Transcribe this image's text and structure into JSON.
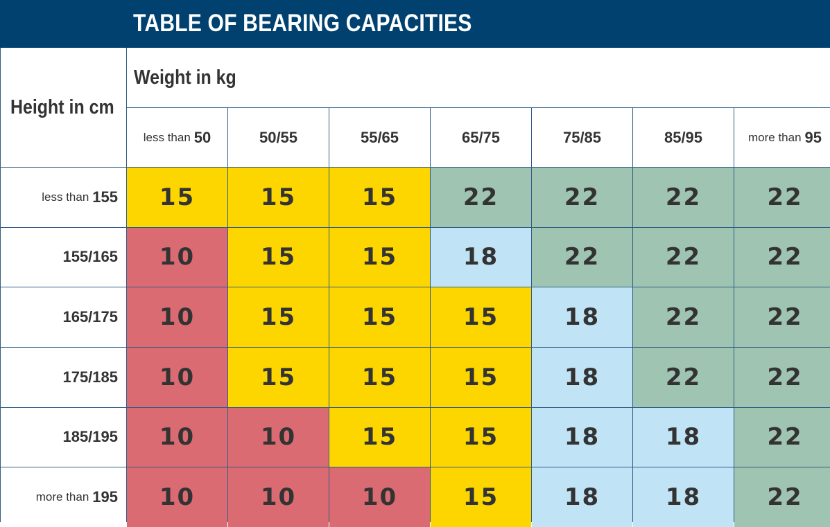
{
  "title": "TABLE OF BEARING CAPACITIES",
  "row_axis_label": "Height in cm",
  "col_axis_label": "Weight in kg",
  "columns": [
    {
      "prefix": "less than",
      "value": "50"
    },
    {
      "prefix": "",
      "value": "50/55"
    },
    {
      "prefix": "",
      "value": "55/65"
    },
    {
      "prefix": "",
      "value": "65/75"
    },
    {
      "prefix": "",
      "value": "75/85"
    },
    {
      "prefix": "",
      "value": "85/95"
    },
    {
      "prefix": "more than",
      "value": "95"
    }
  ],
  "rows": [
    {
      "prefix": "less than",
      "value": "155",
      "cells": [
        "15",
        "15",
        "15",
        "22",
        "22",
        "22",
        "22"
      ]
    },
    {
      "prefix": "",
      "value": "155/165",
      "cells": [
        "10",
        "15",
        "15",
        "18",
        "22",
        "22",
        "22"
      ]
    },
    {
      "prefix": "",
      "value": "165/175",
      "cells": [
        "10",
        "15",
        "15",
        "15",
        "18",
        "22",
        "22"
      ]
    },
    {
      "prefix": "",
      "value": "175/185",
      "cells": [
        "10",
        "15",
        "15",
        "15",
        "18",
        "22",
        "22"
      ]
    },
    {
      "prefix": "",
      "value": "185/195",
      "cells": [
        "10",
        "10",
        "15",
        "15",
        "18",
        "18",
        "22"
      ]
    },
    {
      "prefix": "more than",
      "value": "195",
      "cells": [
        "10",
        "10",
        "10",
        "15",
        "18",
        "18",
        "22"
      ]
    }
  ],
  "colors": {
    "banner": "#004170",
    "grid_lines": "#2f5c84",
    "value_10": "#db6b72",
    "value_15": "#fdd600",
    "value_18": "#c0e3f6",
    "value_22": "#9fc4b1"
  }
}
